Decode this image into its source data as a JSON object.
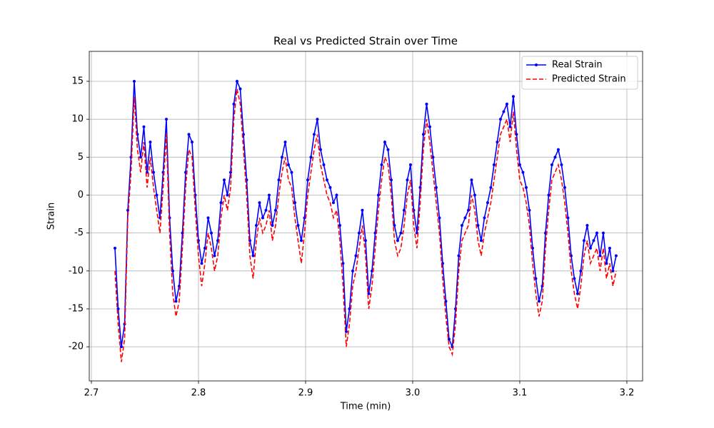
{
  "chart_data": {
    "type": "line",
    "title": "Real vs Predicted Strain over Time",
    "xlabel": "Time (min)",
    "ylabel": "Strain",
    "xlim": [
      2.698,
      3.2147
    ],
    "ylim": [
      -24.5,
      18.95
    ],
    "xticks": [
      2.7,
      2.8,
      2.9,
      {
        "value": 3,
        "label": "3.0"
      },
      3.1,
      3.2
    ],
    "yticks": [
      -20,
      -15,
      -10,
      -5,
      0,
      5,
      10,
      15
    ],
    "grid": true,
    "legend": "upper right",
    "x": [
      2.722,
      2.725,
      2.728,
      2.731,
      2.734,
      2.737,
      2.74,
      2.743,
      2.746,
      2.749,
      2.752,
      2.755,
      2.758,
      2.761,
      2.764,
      2.767,
      2.77,
      2.773,
      2.776,
      2.779,
      2.782,
      2.785,
      2.788,
      2.791,
      2.794,
      2.797,
      2.8,
      2.803,
      2.806,
      2.809,
      2.812,
      2.815,
      2.818,
      2.821,
      2.824,
      2.827,
      2.83,
      2.833,
      2.836,
      2.839,
      2.842,
      2.845,
      2.848,
      2.851,
      2.854,
      2.857,
      2.86,
      2.863,
      2.866,
      2.869,
      2.872,
      2.875,
      2.878,
      2.881,
      2.884,
      2.887,
      2.89,
      2.893,
      2.896,
      2.899,
      2.902,
      2.905,
      2.908,
      2.911,
      2.914,
      2.917,
      2.92,
      2.923,
      2.926,
      2.929,
      2.932,
      2.935,
      2.938,
      2.941,
      2.944,
      2.947,
      2.95,
      2.953,
      2.956,
      2.959,
      2.962,
      2.965,
      2.968,
      2.971,
      2.974,
      2.977,
      2.98,
      2.983,
      2.986,
      2.989,
      2.992,
      2.995,
      2.998,
      3.001,
      3.004,
      3.007,
      3.01,
      3.013,
      3.016,
      3.019,
      3.022,
      3.025,
      3.028,
      3.031,
      3.034,
      3.037,
      3.04,
      3.043,
      3.046,
      3.049,
      3.052,
      3.055,
      3.058,
      3.061,
      3.064,
      3.067,
      3.07,
      3.073,
      3.076,
      3.079,
      3.082,
      3.085,
      3.088,
      3.091,
      3.094,
      3.097,
      3.1,
      3.103,
      3.106,
      3.109,
      3.112,
      3.115,
      3.118,
      3.121,
      3.124,
      3.127,
      3.13,
      3.133,
      3.136,
      3.139,
      3.142,
      3.145,
      3.148,
      3.151,
      3.154,
      3.157,
      3.16,
      3.163,
      3.166,
      3.169,
      3.172,
      3.175,
      3.178,
      3.181,
      3.184,
      3.187,
      3.19
    ],
    "series": [
      {
        "name": "Real Strain",
        "color": "#0000ff",
        "linestyle": "solid",
        "marker": true,
        "values": [
          -7,
          -15,
          -20,
          -17,
          -2,
          5,
          15,
          8,
          5,
          9,
          3,
          7,
          3,
          0,
          -3,
          3,
          10,
          -3,
          -10,
          -14,
          -12,
          -5,
          3,
          8,
          7,
          0,
          -6,
          -9,
          -7,
          -3,
          -5,
          -8,
          -6,
          -1,
          2,
          0,
          3,
          12,
          15,
          14,
          8,
          2,
          -6,
          -8,
          -4,
          -1,
          -3,
          -2,
          0,
          -4,
          -2,
          2,
          5,
          7,
          4,
          3,
          -1,
          -4,
          -6,
          -3,
          2,
          5,
          8,
          10,
          6,
          4,
          2,
          1,
          -1,
          0,
          -4,
          -9,
          -18,
          -15,
          -10,
          -8,
          -5,
          -2,
          -6,
          -13,
          -10,
          -5,
          0,
          4,
          7,
          6,
          2,
          -4,
          -6,
          -5,
          -2,
          2,
          4,
          -2,
          -5,
          1,
          8,
          12,
          9,
          5,
          1,
          -3,
          -9,
          -14,
          -19,
          -20,
          -15,
          -8,
          -4,
          -3,
          -2,
          2,
          0,
          -4,
          -6,
          -3,
          -1,
          1,
          4,
          7,
          10,
          11,
          12,
          9,
          13,
          8,
          4,
          3,
          1,
          -2,
          -7,
          -11,
          -14,
          -12,
          -5,
          0,
          4,
          5,
          6,
          4,
          1,
          -3,
          -8,
          -11,
          -13,
          -10,
          -6,
          -4,
          -7,
          -6,
          -5,
          -8,
          -5,
          -9,
          -7,
          -10,
          -8
        ]
      },
      {
        "name": "Predicted Strain",
        "color": "#ff0000",
        "linestyle": "dashed",
        "marker": false,
        "values": [
          -10,
          -17,
          -22,
          -19,
          -3,
          3,
          13,
          6,
          3,
          7,
          1,
          5,
          1,
          -2,
          -5,
          1,
          8,
          -5,
          -13,
          -16,
          -14,
          -7,
          1,
          6,
          5,
          -2,
          -8,
          -12,
          -9,
          -5,
          -7,
          -10,
          -8,
          -3,
          0,
          -2,
          1,
          10,
          14,
          12,
          6,
          0,
          -8,
          -11,
          -6,
          -3,
          -5,
          -4,
          -2,
          -6,
          -4,
          0,
          3,
          5,
          2,
          1,
          -3,
          -6,
          -9,
          -5,
          0,
          3,
          6,
          8,
          4,
          2,
          0,
          -1,
          -3,
          -2,
          -6,
          -12,
          -20,
          -17,
          -12,
          -10,
          -7,
          -4,
          -8,
          -15,
          -12,
          -7,
          -2,
          2,
          5,
          4,
          0,
          -6,
          -8,
          -7,
          -4,
          0,
          2,
          -4,
          -7,
          -1,
          6,
          10,
          7,
          3,
          -1,
          -5,
          -11,
          -16,
          -20,
          -21,
          -17,
          -10,
          -6,
          -5,
          -4,
          0,
          -2,
          -6,
          -8,
          -5,
          -3,
          -1,
          2,
          5,
          8,
          9,
          10,
          7,
          11,
          6,
          2,
          1,
          -1,
          -4,
          -9,
          -13,
          -16,
          -14,
          -7,
          -2,
          2,
          3,
          4,
          2,
          -1,
          -5,
          -10,
          -13,
          -15,
          -12,
          -8,
          -6,
          -9,
          -8,
          -7,
          -10,
          -7,
          -11,
          -9,
          -12,
          -10
        ]
      }
    ]
  }
}
